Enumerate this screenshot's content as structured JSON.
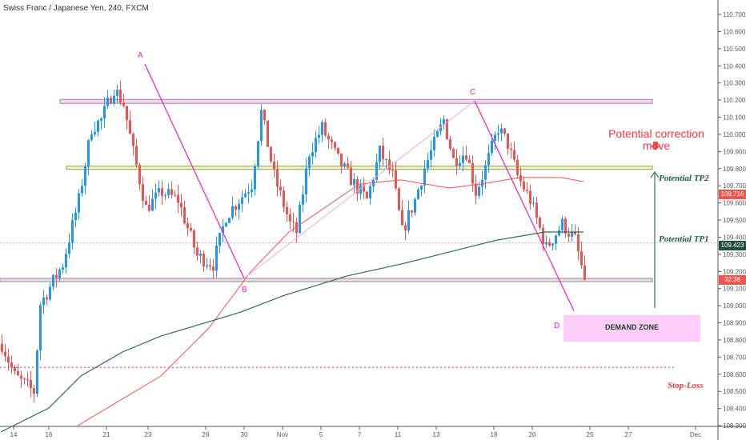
{
  "header": {
    "title": "Swiss Franc / Japanese Yen, 240, FXCM"
  },
  "colors": {
    "up": "#2196f3",
    "down": "#ef5350",
    "ma_fast": "#f0544f",
    "ma_slow": "#2f6b50",
    "pattern": "#e91ec8",
    "pattern_light": "#f5a3ec",
    "tp_arrow": "#2e7d4f",
    "zone_fill": "#ffcdf9"
  },
  "annotations": {
    "points": {
      "A": "A",
      "B": "B",
      "C": "C",
      "D": "D"
    },
    "correction_line1": "Potential correction",
    "correction_line2": "move",
    "tp2": "Potential TP2",
    "tp1": "Potential TP1",
    "stop_loss": "Stop-Loss",
    "demand_zone": "DEMAND ZONE"
  },
  "price_labels": {
    "ma_fast": "109.716",
    "ma_slow": "109.423",
    "countdown": "32:38"
  },
  "chart_data": {
    "type": "candlestick",
    "title": "Swiss Franc / Japanese Yen, 240, FXCM",
    "ylim": [
      108.3,
      110.7
    ],
    "y_ticks": [
      "110.700",
      "110.600",
      "110.500",
      "110.400",
      "110.300",
      "110.200",
      "110.100",
      "110.000",
      "109.900",
      "109.800",
      "109.700",
      "109.600",
      "109.500",
      "109.400",
      "109.300",
      "109.200",
      "109.100",
      "109.000",
      "108.900",
      "108.800",
      "108.700",
      "108.600",
      "108.500",
      "108.400",
      "108.300"
    ],
    "x_ticks": [
      {
        "label": "14",
        "idx": 4
      },
      {
        "label": "16",
        "idx": 15
      },
      {
        "label": "21",
        "idx": 33
      },
      {
        "label": "23",
        "idx": 46
      },
      {
        "label": "28",
        "idx": 64
      },
      {
        "label": "30",
        "idx": 76
      },
      {
        "label": "Nov",
        "idx": 88
      },
      {
        "label": "5",
        "idx": 100
      },
      {
        "label": "7",
        "idx": 112
      },
      {
        "label": "11",
        "idx": 124
      },
      {
        "label": "13",
        "idx": 136
      },
      {
        "label": "18",
        "idx": 154
      },
      {
        "label": "20",
        "idx": 166
      },
      {
        "label": "25",
        "idx": 184
      },
      {
        "label": "27",
        "idx": 196
      },
      {
        "label": "Dec",
        "idx": 217
      }
    ],
    "x_range_candles": [
      0,
      233
    ],
    "close_waypoints": [
      [
        0,
        108.777
      ],
      [
        4,
        108.59
      ],
      [
        10,
        108.497
      ],
      [
        12,
        109.01
      ],
      [
        19,
        109.243
      ],
      [
        24,
        109.617
      ],
      [
        28,
        110.037
      ],
      [
        31,
        110.084
      ],
      [
        35,
        110.27
      ],
      [
        38,
        110.177
      ],
      [
        41,
        109.897
      ],
      [
        45,
        109.57
      ],
      [
        50,
        109.664
      ],
      [
        55,
        109.617
      ],
      [
        61,
        109.29
      ],
      [
        66,
        109.243
      ],
      [
        70,
        109.524
      ],
      [
        74,
        109.617
      ],
      [
        78,
        109.71
      ],
      [
        81,
        110.13
      ],
      [
        85,
        109.757
      ],
      [
        90,
        109.477
      ],
      [
        92,
        109.43
      ],
      [
        96,
        109.897
      ],
      [
        100,
        110.037
      ],
      [
        105,
        109.85
      ],
      [
        110,
        109.71
      ],
      [
        114,
        109.617
      ],
      [
        118,
        109.897
      ],
      [
        122,
        109.757
      ],
      [
        125,
        109.43
      ],
      [
        129,
        109.617
      ],
      [
        132,
        109.804
      ],
      [
        138,
        110.084
      ],
      [
        141,
        109.85
      ],
      [
        145,
        109.897
      ],
      [
        148,
        109.664
      ],
      [
        151,
        109.804
      ],
      [
        155,
        110.037
      ],
      [
        158,
        109.944
      ],
      [
        161,
        109.757
      ],
      [
        165,
        109.617
      ],
      [
        170,
        109.337
      ],
      [
        175,
        109.477
      ],
      [
        179,
        109.384
      ],
      [
        182,
        109.15
      ]
    ],
    "ma_fast": [
      [
        24,
        108.3
      ],
      [
        50,
        108.59
      ],
      [
        65,
        108.87
      ],
      [
        78,
        109.197
      ],
      [
        90,
        109.43
      ],
      [
        112,
        109.71
      ],
      [
        125,
        109.734
      ],
      [
        140,
        109.687
      ],
      [
        150,
        109.71
      ],
      [
        162,
        109.748
      ],
      [
        175,
        109.748
      ],
      [
        182,
        109.724
      ]
    ],
    "ma_slow": [
      [
        0,
        108.263
      ],
      [
        15,
        108.403
      ],
      [
        25,
        108.59
      ],
      [
        38,
        108.73
      ],
      [
        50,
        108.823
      ],
      [
        75,
        108.963
      ],
      [
        88,
        109.057
      ],
      [
        108,
        109.173
      ],
      [
        125,
        109.243
      ],
      [
        140,
        109.313
      ],
      [
        155,
        109.383
      ],
      [
        170,
        109.43
      ],
      [
        182,
        109.43
      ]
    ],
    "levels": {
      "resistance_top": 110.19,
      "resistance_mid": 109.805,
      "support": 109.15,
      "tp1_line": 109.366,
      "stop_loss": 108.64
    },
    "abcd": {
      "A": [
        45,
        110.41
      ],
      "B": [
        76,
        109.16
      ],
      "C": [
        148,
        110.195
      ],
      "D": [
        179,
        108.97
      ]
    },
    "demand_zone": [
      108.79,
      108.945
    ]
  }
}
